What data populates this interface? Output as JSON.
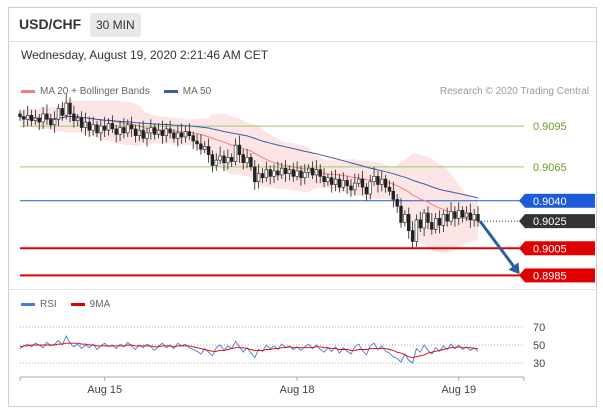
{
  "header": {
    "symbol": "USD/CHF",
    "timeframe": "30 MIN",
    "datetime": "Wednesday, August 19, 2020 2:21:46 AM CET"
  },
  "legend": {
    "ma20_label": "MA 20 + Bollinger Bands",
    "ma50_label": "MA 50",
    "credit": "Research © 2020 Trading Central"
  },
  "rsi_legend": {
    "rsi_label": "RSI",
    "ma_label": "9MA"
  },
  "colors": {
    "ma20": "#f08080",
    "ma50": "#3a5ea8",
    "bollinger_fill": "#fbe0e0",
    "resistance": "#9acd6a",
    "pivot": "#1e5bd6",
    "support": "#e00000",
    "current": "#333333",
    "arrow": "#2f5f9a",
    "rsi": "#4a7bd6",
    "rsi_ma": "#e00000"
  },
  "chart_data": {
    "type": "candlestick",
    "y_range": [
      0.8975,
      0.9115
    ],
    "levels": [
      {
        "name": "resistance-2",
        "value": 0.9095,
        "label": "0.9095",
        "kind": "resistance"
      },
      {
        "name": "resistance-1",
        "value": 0.9065,
        "label": "0.9065",
        "kind": "resistance"
      },
      {
        "name": "pivot",
        "value": 0.904,
        "label": "0.9040",
        "kind": "pivot"
      },
      {
        "name": "current-price",
        "value": 0.9025,
        "label": "0.9025",
        "kind": "current"
      },
      {
        "name": "support-1",
        "value": 0.9005,
        "label": "0.9005",
        "kind": "support"
      },
      {
        "name": "support-2",
        "value": 0.8985,
        "label": "0.8985",
        "kind": "support"
      }
    ],
    "x_ticks": [
      "Aug 15",
      "Aug 18",
      "Aug 19"
    ],
    "close_series": [
      0.9102,
      0.91,
      0.9103,
      0.9099,
      0.9101,
      0.9098,
      0.9104,
      0.91,
      0.9096,
      0.91,
      0.9108,
      0.9103,
      0.9112,
      0.9104,
      0.9099,
      0.9101,
      0.9094,
      0.9098,
      0.9092,
      0.9096,
      0.909,
      0.9095,
      0.9092,
      0.9097,
      0.9093,
      0.9089,
      0.9094,
      0.909,
      0.9096,
      0.9093,
      0.9088,
      0.9092,
      0.9086,
      0.909,
      0.9094,
      0.9089,
      0.9092,
      0.9088,
      0.9093,
      0.909,
      0.9086,
      0.909,
      0.9087,
      0.9091,
      0.9088,
      0.9084,
      0.9082,
      0.9078,
      0.908,
      0.9074,
      0.9066,
      0.907,
      0.9073,
      0.9068,
      0.9072,
      0.9069,
      0.9081,
      0.9074,
      0.9068,
      0.9072,
      0.9065,
      0.9054,
      0.906,
      0.9057,
      0.9063,
      0.9058,
      0.9062,
      0.9059,
      0.9064,
      0.906,
      0.9063,
      0.9058,
      0.9062,
      0.9057,
      0.9061,
      0.9064,
      0.9059,
      0.9063,
      0.9058,
      0.9054,
      0.9057,
      0.9052,
      0.9056,
      0.905,
      0.9055,
      0.9051,
      0.9048,
      0.9053,
      0.9056,
      0.905,
      0.9045,
      0.9054,
      0.9058,
      0.9052,
      0.9056,
      0.905,
      0.9047,
      0.9041,
      0.9036,
      0.9024,
      0.903,
      0.9018,
      0.901,
      0.9026,
      0.902,
      0.9031,
      0.9024,
      0.9019,
      0.9027,
      0.9022,
      0.903,
      0.9025,
      0.9032,
      0.9027,
      0.9033,
      0.9028,
      0.9031,
      0.9026,
      0.903,
      0.9025
    ],
    "rsi": {
      "levels": [
        70,
        50,
        30
      ],
      "range": [
        20,
        80
      ],
      "values": [
        46,
        49,
        51,
        48,
        52,
        50,
        47,
        53,
        49,
        51,
        55,
        50,
        60,
        52,
        48,
        51,
        46,
        50,
        47,
        51,
        45,
        49,
        52,
        48,
        50,
        46,
        51,
        48,
        53,
        49,
        45,
        50,
        47,
        51,
        48,
        44,
        49,
        52,
        47,
        50,
        46,
        52,
        49,
        51,
        47,
        45,
        43,
        40,
        46,
        42,
        38,
        47,
        50,
        44,
        49,
        46,
        54,
        48,
        42,
        47,
        41,
        36,
        45,
        43,
        50,
        46,
        49,
        45,
        51,
        47,
        49,
        45,
        48,
        44,
        48,
        51,
        46,
        50,
        45,
        42,
        47,
        43,
        48,
        41,
        47,
        43,
        40,
        48,
        51,
        44,
        39,
        49,
        52,
        45,
        49,
        43,
        41,
        37,
        35,
        31,
        40,
        33,
        30,
        46,
        42,
        50,
        44,
        40,
        47,
        43,
        49,
        45,
        51,
        46,
        50,
        45,
        48,
        44,
        47,
        43
      ]
    },
    "rsi_ma": [
      48,
      49,
      49,
      50,
      50,
      50,
      50,
      50,
      50,
      50,
      51,
      51,
      52,
      52,
      52,
      52,
      51,
      51,
      50,
      50,
      49,
      49,
      49,
      49,
      49,
      49,
      49,
      49,
      50,
      50,
      49,
      49,
      49,
      49,
      49,
      48,
      48,
      49,
      49,
      49,
      48,
      49,
      49,
      49,
      49,
      48,
      47,
      46,
      45,
      44,
      43,
      43,
      44,
      44,
      45,
      46,
      47,
      47,
      47,
      46,
      45,
      44,
      44,
      44,
      45,
      45,
      46,
      46,
      47,
      47,
      48,
      47,
      47,
      47,
      47,
      47,
      47,
      48,
      48,
      47,
      47,
      46,
      46,
      45,
      45,
      45,
      44,
      44,
      45,
      45,
      45,
      46,
      46,
      46,
      46,
      46,
      45,
      44,
      42,
      41,
      39,
      37,
      36,
      37,
      38,
      39,
      41,
      42,
      43,
      44,
      45,
      46,
      47,
      47,
      48,
      47,
      47,
      47,
      46,
      46
    ]
  }
}
